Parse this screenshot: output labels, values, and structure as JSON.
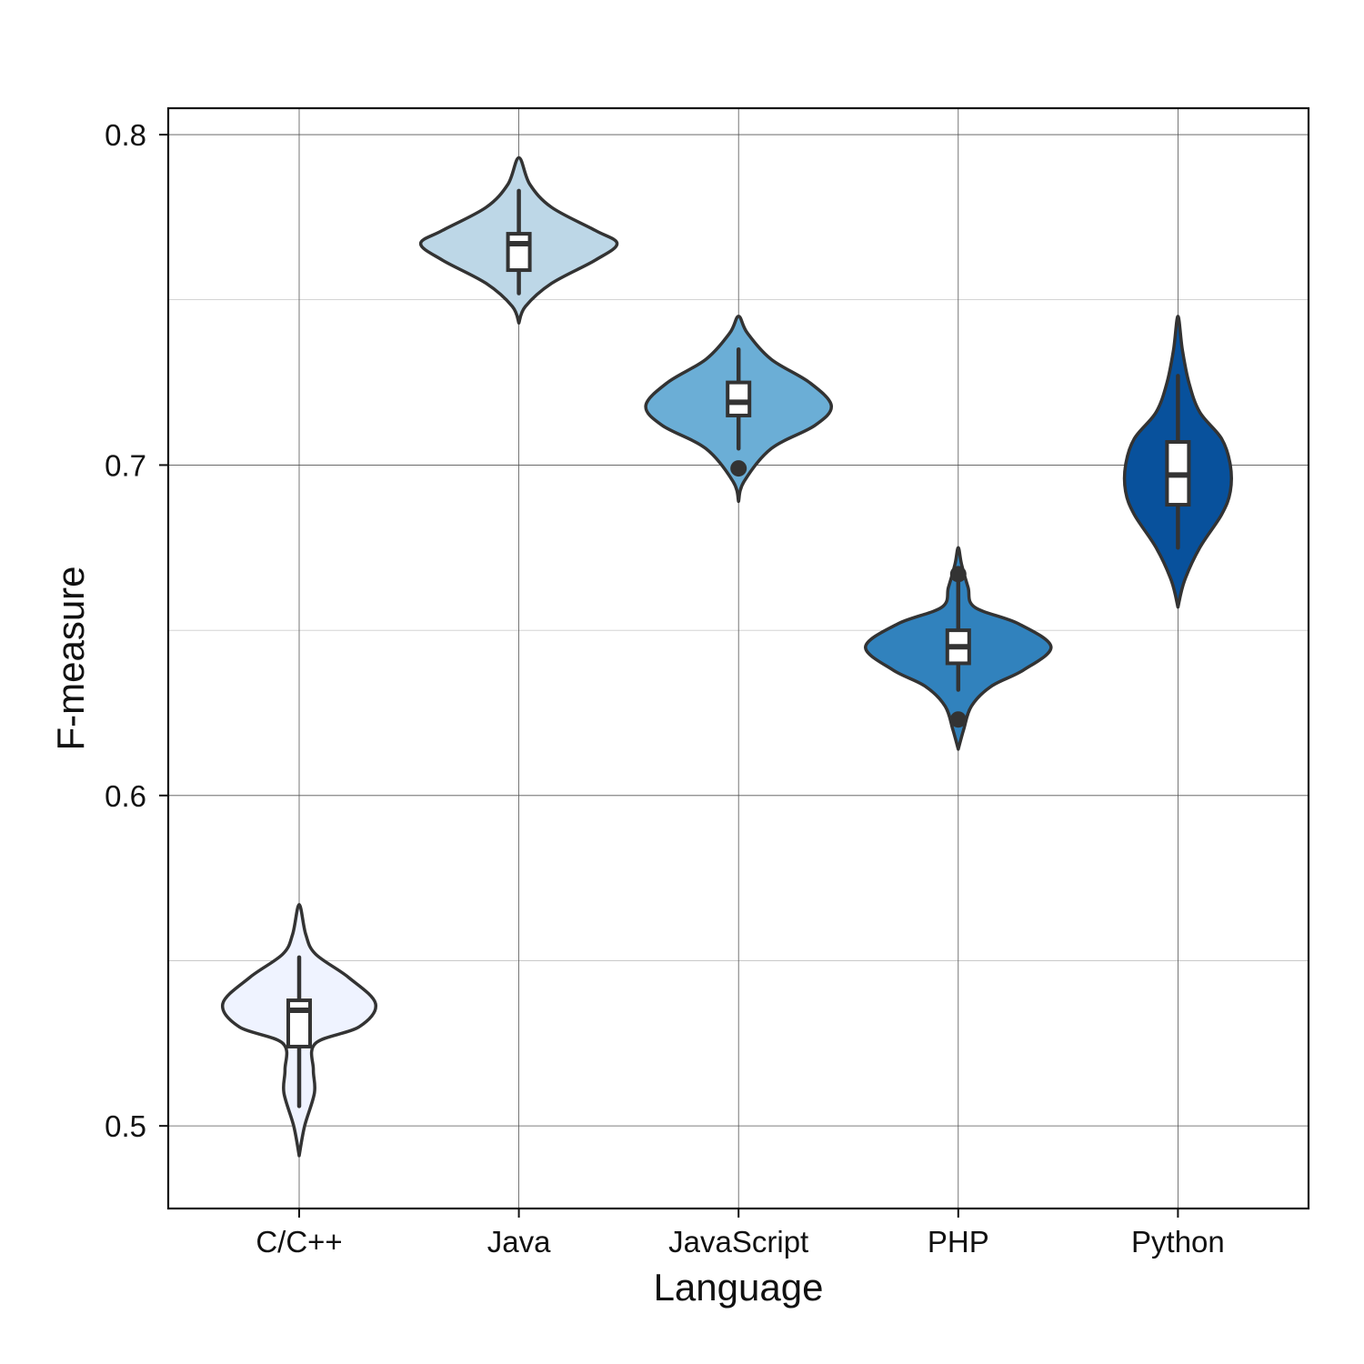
{
  "chart_data": {
    "type": "violin",
    "title": "",
    "xlabel": "Language",
    "ylabel": "F-measure",
    "ylim": [
      0.475,
      0.808
    ],
    "yticks": [
      "0.5",
      "0.6",
      "0.7",
      "0.8"
    ],
    "ytick_values": [
      0.5,
      0.6,
      0.7,
      0.8
    ],
    "minor_grid_values": [
      0.55,
      0.65,
      0.75
    ],
    "grid": true,
    "legend": false,
    "categories": [
      "C/C++",
      "Java",
      "JavaScript",
      "PHP",
      "Python"
    ],
    "series": [
      {
        "category": "C/C++",
        "color": "#eff3ff",
        "box": {
          "q1": 0.524,
          "median": 0.535,
          "q3": 0.538,
          "whisker_low": 0.506,
          "whisker_high": 0.551
        },
        "outliers": [],
        "density": [
          [
            0.491,
            0.0
          ],
          [
            0.5,
            0.05
          ],
          [
            0.51,
            0.14
          ],
          [
            0.517,
            0.13
          ],
          [
            0.525,
            0.15
          ],
          [
            0.53,
            0.55
          ],
          [
            0.537,
            0.7
          ],
          [
            0.545,
            0.45
          ],
          [
            0.552,
            0.15
          ],
          [
            0.558,
            0.06
          ],
          [
            0.567,
            0.0
          ]
        ]
      },
      {
        "category": "Java",
        "color": "#bdd7e7",
        "box": {
          "q1": 0.759,
          "median": 0.767,
          "q3": 0.77,
          "whisker_low": 0.752,
          "whisker_high": 0.783
        },
        "outliers": [],
        "density": [
          [
            0.743,
            0.0
          ],
          [
            0.748,
            0.06
          ],
          [
            0.755,
            0.3
          ],
          [
            0.762,
            0.7
          ],
          [
            0.767,
            0.9
          ],
          [
            0.771,
            0.7
          ],
          [
            0.778,
            0.3
          ],
          [
            0.785,
            0.1
          ],
          [
            0.793,
            0.0
          ]
        ]
      },
      {
        "category": "JavaScript",
        "color": "#6baed6",
        "box": {
          "q1": 0.715,
          "median": 0.719,
          "q3": 0.725,
          "whisker_low": 0.705,
          "whisker_high": 0.735
        },
        "outliers": [
          0.699
        ],
        "density": [
          [
            0.689,
            0.0
          ],
          [
            0.695,
            0.05
          ],
          [
            0.705,
            0.3
          ],
          [
            0.712,
            0.7
          ],
          [
            0.718,
            0.85
          ],
          [
            0.725,
            0.65
          ],
          [
            0.732,
            0.3
          ],
          [
            0.74,
            0.08
          ],
          [
            0.745,
            0.0
          ]
        ]
      },
      {
        "category": "PHP",
        "color": "#3182bd",
        "box": {
          "q1": 0.64,
          "median": 0.645,
          "q3": 0.65,
          "whisker_low": 0.632,
          "whisker_high": 0.665
        },
        "outliers": [
          0.667,
          0.623
        ],
        "density": [
          [
            0.614,
            0.0
          ],
          [
            0.62,
            0.05
          ],
          [
            0.627,
            0.12
          ],
          [
            0.633,
            0.3
          ],
          [
            0.638,
            0.6
          ],
          [
            0.645,
            0.85
          ],
          [
            0.652,
            0.55
          ],
          [
            0.657,
            0.15
          ],
          [
            0.663,
            0.09
          ],
          [
            0.67,
            0.03
          ],
          [
            0.675,
            0.0
          ]
        ]
      },
      {
        "category": "Python",
        "color": "#08519c",
        "box": {
          "q1": 0.688,
          "median": 0.697,
          "q3": 0.707,
          "whisker_low": 0.675,
          "whisker_high": 0.727
        },
        "outliers": [],
        "density": [
          [
            0.657,
            0.0
          ],
          [
            0.665,
            0.06
          ],
          [
            0.675,
            0.2
          ],
          [
            0.685,
            0.4
          ],
          [
            0.692,
            0.48
          ],
          [
            0.7,
            0.48
          ],
          [
            0.708,
            0.4
          ],
          [
            0.716,
            0.2
          ],
          [
            0.725,
            0.1
          ],
          [
            0.735,
            0.04
          ],
          [
            0.745,
            0.0
          ]
        ]
      }
    ]
  }
}
